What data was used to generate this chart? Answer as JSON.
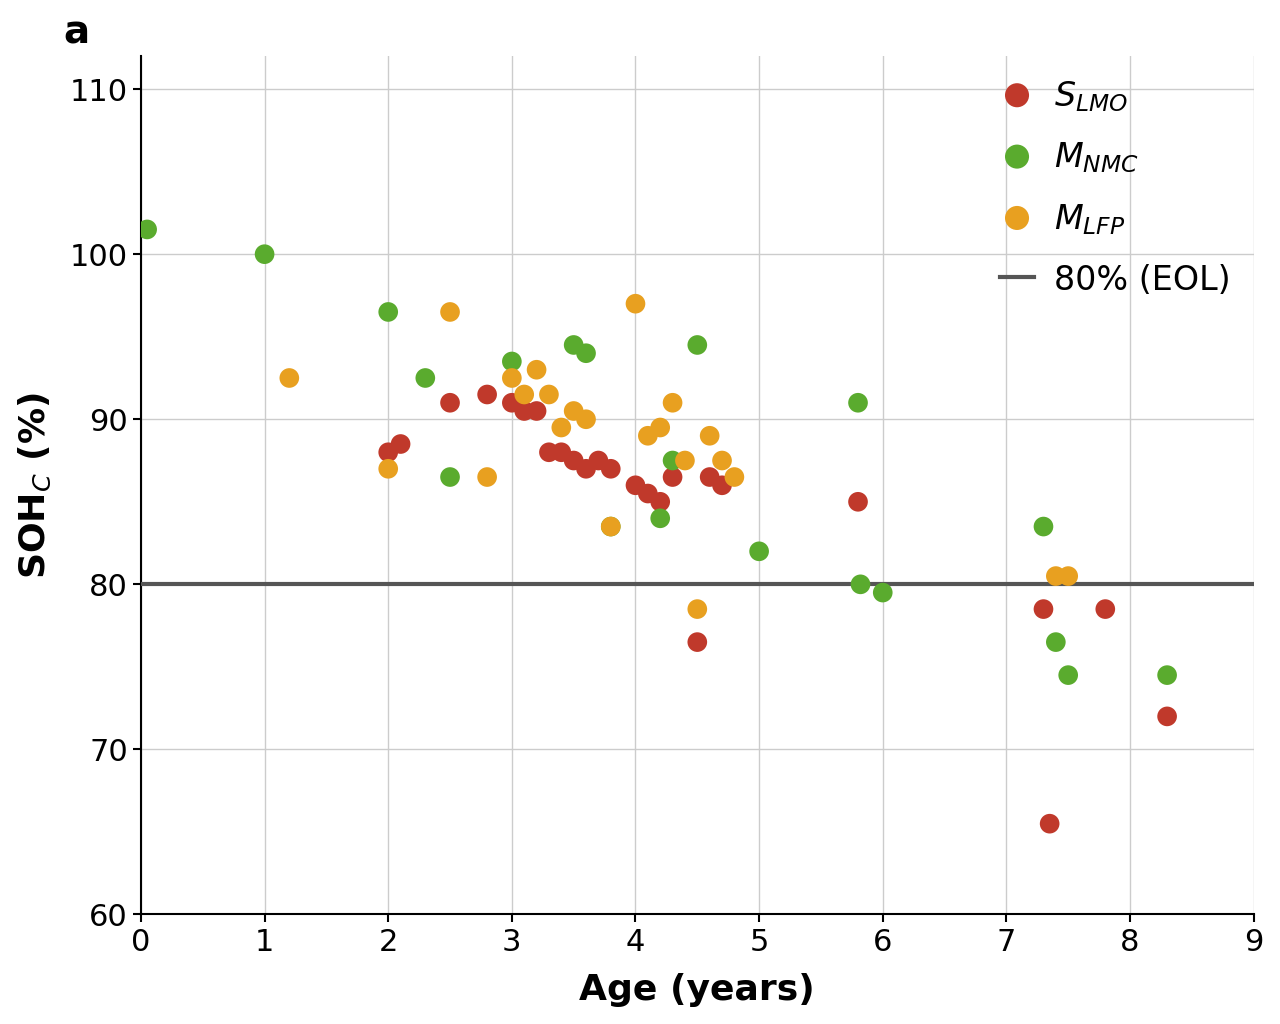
{
  "S_LMO": {
    "x": [
      2.0,
      2.1,
      2.5,
      2.8,
      3.0,
      3.1,
      3.2,
      3.3,
      3.4,
      3.5,
      3.6,
      3.7,
      3.8,
      4.0,
      4.1,
      4.2,
      4.3,
      4.5,
      4.6,
      4.7,
      5.8,
      7.3,
      7.35,
      7.8,
      8.3
    ],
    "y": [
      88.0,
      88.5,
      91.0,
      91.5,
      91.0,
      90.5,
      90.5,
      88.0,
      88.0,
      87.5,
      87.0,
      87.5,
      87.0,
      86.0,
      85.5,
      85.0,
      86.5,
      76.5,
      86.5,
      86.0,
      85.0,
      78.5,
      65.5,
      78.5,
      72.0
    ],
    "color": "#c0392b"
  },
  "M_NMC": {
    "x": [
      0.05,
      1.0,
      2.0,
      2.3,
      2.5,
      3.0,
      3.5,
      3.6,
      3.8,
      4.2,
      4.3,
      4.5,
      5.0,
      5.8,
      5.82,
      6.0,
      7.3,
      7.4,
      7.5,
      8.3
    ],
    "y": [
      101.5,
      100.0,
      96.5,
      92.5,
      86.5,
      93.5,
      94.5,
      94.0,
      83.5,
      84.0,
      87.5,
      94.5,
      82.0,
      91.0,
      80.0,
      79.5,
      83.5,
      76.5,
      74.5,
      74.5
    ],
    "color": "#5aab2e"
  },
  "M_LFP": {
    "x": [
      1.2,
      2.0,
      2.5,
      2.8,
      3.0,
      3.1,
      3.2,
      3.3,
      3.4,
      3.5,
      3.6,
      3.8,
      4.0,
      4.1,
      4.2,
      4.3,
      4.4,
      4.5,
      4.6,
      4.7,
      4.8,
      7.4,
      7.5
    ],
    "y": [
      92.5,
      87.0,
      96.5,
      86.5,
      92.5,
      91.5,
      93.0,
      91.5,
      89.5,
      90.5,
      90.0,
      83.5,
      97.0,
      89.0,
      89.5,
      91.0,
      87.5,
      78.5,
      89.0,
      87.5,
      86.5,
      80.5,
      80.5
    ],
    "color": "#e8a020"
  },
  "eol_y": 80,
  "xlim": [
    0,
    9
  ],
  "ylim": [
    60,
    112
  ],
  "yticks": [
    60,
    70,
    80,
    90,
    100,
    110
  ],
  "xticks": [
    0,
    1,
    2,
    3,
    4,
    5,
    6,
    7,
    8,
    9
  ],
  "xlabel": "Age (years)",
  "ylabel": "SOH_C (%)",
  "marker_size": 200,
  "eol_color": "#555555",
  "grid_color": "#cccccc",
  "panel_label": "a",
  "tick_fontsize": 22,
  "label_fontsize": 26,
  "legend_fontsize": 24
}
